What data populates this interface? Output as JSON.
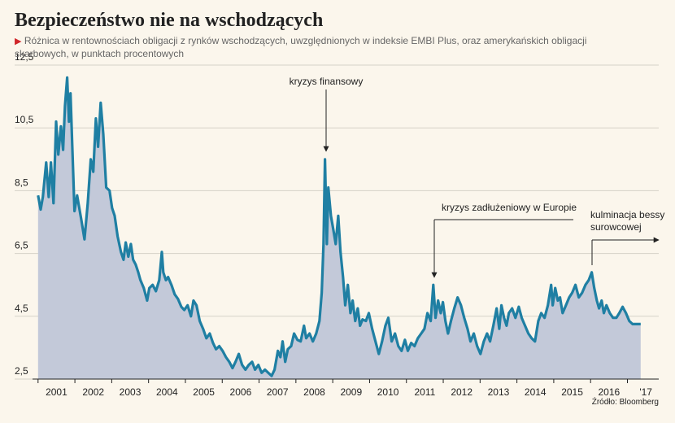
{
  "chart_data": {
    "type": "area",
    "title": "Bezpieczeństwo nie na wschodzących",
    "subtitle": "Różnica w rentownościach obligacji z rynków wschodzących, uwzględnionych w indeksie EMBI Plus, oraz amerykańskich obligacji skarbowych, w punktach procentowych",
    "source": "Źródło: Bloomberg",
    "color": "#1f7fa3",
    "fill": "#c3c9d9",
    "grid": true,
    "ylim": [
      2.5,
      12.5
    ],
    "yticks": [
      {
        "value": 2.5,
        "label": "2,5"
      },
      {
        "value": 4.5,
        "label": "4,5"
      },
      {
        "value": 6.5,
        "label": "6,5"
      },
      {
        "value": 8.5,
        "label": "8,5"
      },
      {
        "value": 10.5,
        "label": "10,5"
      },
      {
        "value": 12.5,
        "label": "12,5"
      }
    ],
    "xlim": [
      2000.85,
      2017.85
    ],
    "xticks": [
      2001,
      2002,
      2003,
      2004,
      2005,
      2006,
      2007,
      2008,
      2009,
      2010,
      2011,
      2012,
      2013,
      2014,
      2015,
      2016,
      {
        "value": 2017,
        "label": "'17"
      }
    ],
    "x": [
      2001.0,
      2001.07,
      2001.13,
      2001.22,
      2001.29,
      2001.35,
      2001.42,
      2001.49,
      2001.55,
      2001.62,
      2001.68,
      2001.73,
      2001.79,
      2001.84,
      2001.88,
      2001.93,
      2001.99,
      2002.06,
      2002.17,
      2002.26,
      2002.35,
      2002.43,
      2002.5,
      2002.57,
      2002.63,
      2002.7,
      2002.77,
      2002.85,
      2002.94,
      2003.01,
      2003.08,
      2003.16,
      2003.25,
      2003.32,
      2003.38,
      2003.45,
      2003.52,
      2003.58,
      2003.65,
      2003.72,
      2003.78,
      2003.87,
      2003.96,
      2004.02,
      2004.11,
      2004.2,
      2004.29,
      2004.36,
      2004.4,
      2004.47,
      2004.53,
      2004.62,
      2004.71,
      2004.8,
      2004.89,
      2004.97,
      2005.06,
      2005.15,
      2005.22,
      2005.3,
      2005.39,
      2005.48,
      2005.57,
      2005.66,
      2005.75,
      2005.83,
      2005.92,
      2006.01,
      2006.1,
      2006.19,
      2006.28,
      2006.36,
      2006.45,
      2006.54,
      2006.63,
      2006.72,
      2006.81,
      2006.89,
      2006.98,
      2007.07,
      2007.16,
      2007.25,
      2007.34,
      2007.42,
      2007.51,
      2007.58,
      2007.64,
      2007.71,
      2007.78,
      2007.87,
      2007.95,
      2008.04,
      2008.13,
      2008.22,
      2008.28,
      2008.37,
      2008.46,
      2008.55,
      2008.64,
      2008.7,
      2008.75,
      2008.79,
      2008.84,
      2008.88,
      2008.95,
      2009.01,
      2009.08,
      2009.15,
      2009.21,
      2009.28,
      2009.34,
      2009.41,
      2009.48,
      2009.54,
      2009.61,
      2009.68,
      2009.74,
      2009.81,
      2009.9,
      2009.98,
      2010.07,
      2010.16,
      2010.25,
      2010.34,
      2010.43,
      2010.51,
      2010.6,
      2010.69,
      2010.78,
      2010.87,
      2010.96,
      2011.04,
      2011.13,
      2011.22,
      2011.31,
      2011.4,
      2011.49,
      2011.57,
      2011.66,
      2011.73,
      2011.79,
      2011.86,
      2011.93,
      2011.99,
      2012.06,
      2012.13,
      2012.21,
      2012.3,
      2012.39,
      2012.48,
      2012.57,
      2012.66,
      2012.74,
      2012.83,
      2012.92,
      2013.01,
      2013.1,
      2013.19,
      2013.27,
      2013.36,
      2013.45,
      2013.52,
      2013.58,
      2013.65,
      2013.72,
      2013.78,
      2013.87,
      2013.96,
      2014.05,
      2014.13,
      2014.22,
      2014.31,
      2014.4,
      2014.49,
      2014.58,
      2014.66,
      2014.75,
      2014.84,
      2014.93,
      2014.97,
      2015.04,
      2015.11,
      2015.17,
      2015.24,
      2015.33,
      2015.42,
      2015.5,
      2015.59,
      2015.68,
      2015.77,
      2015.86,
      2015.95,
      2016.03,
      2016.1,
      2016.17,
      2016.23,
      2016.3,
      2016.36,
      2016.43,
      2016.52,
      2016.61,
      2016.7,
      2016.78,
      2016.87,
      2016.96,
      2017.05,
      2017.14,
      2017.23,
      2017.36
    ],
    "values": [
      8.35,
      7.9,
      8.3,
      9.4,
      8.3,
      9.4,
      8.1,
      10.7,
      9.65,
      10.55,
      9.8,
      11.2,
      12.1,
      10.7,
      11.6,
      9.9,
      7.85,
      8.35,
      7.6,
      6.95,
      8.1,
      9.5,
      9.1,
      10.8,
      9.9,
      11.3,
      10.3,
      8.6,
      8.5,
      7.95,
      7.7,
      7.05,
      6.55,
      6.3,
      6.85,
      6.4,
      6.8,
      6.3,
      6.15,
      5.9,
      5.65,
      5.4,
      5.0,
      5.4,
      5.5,
      5.3,
      5.65,
      6.55,
      5.9,
      5.65,
      5.75,
      5.5,
      5.2,
      5.05,
      4.8,
      4.7,
      4.85,
      4.5,
      5.0,
      4.85,
      4.35,
      4.1,
      3.8,
      3.95,
      3.65,
      3.45,
      3.55,
      3.4,
      3.2,
      3.05,
      2.85,
      3.05,
      3.3,
      2.95,
      2.8,
      2.95,
      3.05,
      2.8,
      2.95,
      2.7,
      2.8,
      2.7,
      2.6,
      2.8,
      3.4,
      3.2,
      3.7,
      3.05,
      3.45,
      3.55,
      3.95,
      3.75,
      3.7,
      4.2,
      3.8,
      3.95,
      3.7,
      3.95,
      4.35,
      5.25,
      6.8,
      9.5,
      6.8,
      8.6,
      7.7,
      7.3,
      6.8,
      7.7,
      6.55,
      5.75,
      4.85,
      5.5,
      4.6,
      5.0,
      4.35,
      4.75,
      4.2,
      4.4,
      4.35,
      4.6,
      4.1,
      3.7,
      3.3,
      3.7,
      4.2,
      4.45,
      3.7,
      3.95,
      3.55,
      3.4,
      3.75,
      3.4,
      3.65,
      3.55,
      3.8,
      3.95,
      4.1,
      4.6,
      4.35,
      5.5,
      4.45,
      5.0,
      4.6,
      4.95,
      4.35,
      3.95,
      4.35,
      4.75,
      5.1,
      4.85,
      4.45,
      4.1,
      3.7,
      3.95,
      3.55,
      3.3,
      3.7,
      3.95,
      3.7,
      4.2,
      4.75,
      4.1,
      4.85,
      4.45,
      4.2,
      4.6,
      4.75,
      4.45,
      4.8,
      4.45,
      4.2,
      3.95,
      3.8,
      3.7,
      4.35,
      4.6,
      4.45,
      4.85,
      5.5,
      4.85,
      5.4,
      5.0,
      5.1,
      4.6,
      4.85,
      5.1,
      5.25,
      5.5,
      5.1,
      5.25,
      5.5,
      5.65,
      5.9,
      5.4,
      5.0,
      4.75,
      5.0,
      4.6,
      4.85,
      4.6,
      4.45,
      4.45,
      4.6,
      4.8,
      4.6,
      4.35,
      4.25,
      4.25,
      4.25
    ],
    "annotations": [
      {
        "lines": [
          "kryzys finansowy"
        ]
      },
      {
        "lines": [
          "kryzys zadłużeniowy w Europie"
        ]
      },
      {
        "lines": [
          "kulminacja bessy",
          "surowcowej"
        ]
      }
    ]
  }
}
